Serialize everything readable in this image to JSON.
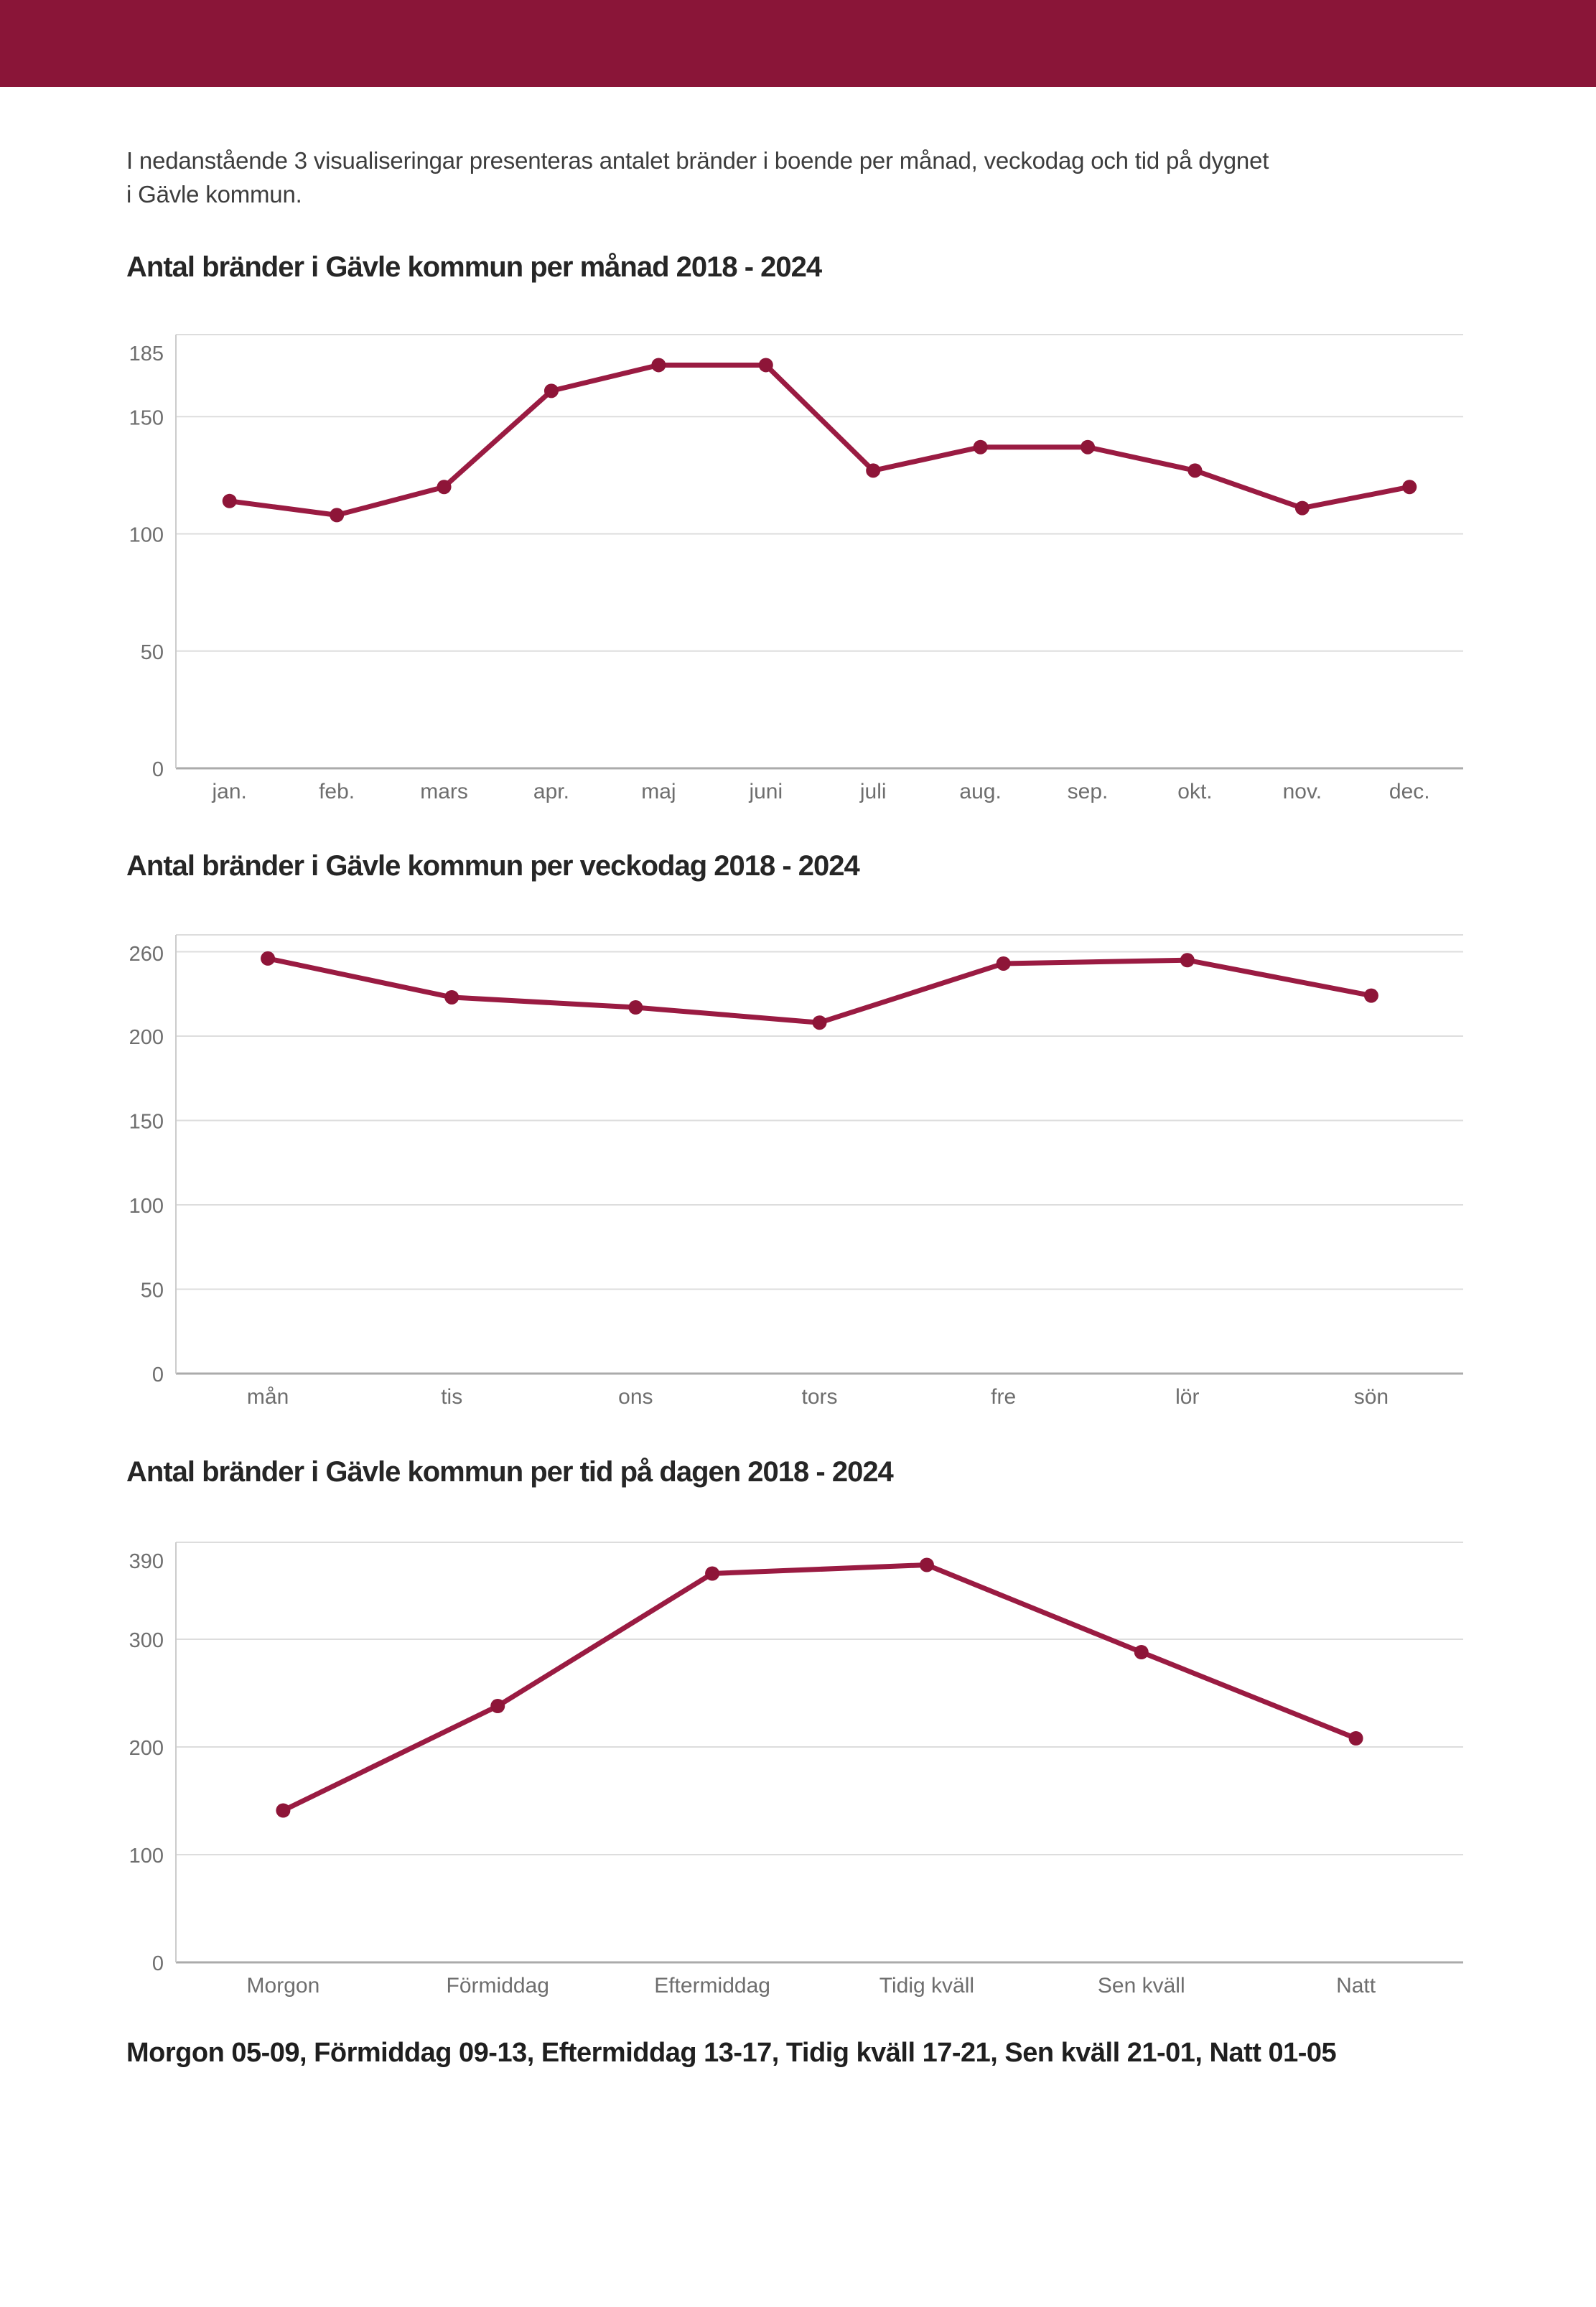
{
  "page": {
    "header_color": "#8A1538",
    "background_color": "#ffffff",
    "accent_color": "#9A1B42"
  },
  "intro": {
    "lines": [
      "I nedanstående 3 visualiseringar presenteras antalet bränder i boende per månad, veckodag och tid på dygnet",
      "i Gävle kommun."
    ]
  },
  "footnote": {
    "text": "Morgon 05-09, Förmiddag 09-13, Eftermiddag 13-17, Tidig kväll 17-21, Sen kväll 21-01, Natt 01-05"
  },
  "chart_data": [
    {
      "type": "line",
      "title": "Antal bränder i Gävle kommun per månad 2018 - 2024",
      "categories": [
        "jan.",
        "feb.",
        "mars",
        "apr.",
        "maj",
        "juni",
        "juli",
        "aug.",
        "sep.",
        "okt.",
        "nov.",
        "dec."
      ],
      "values": [
        114,
        108,
        120,
        161,
        172,
        172,
        127,
        137,
        137,
        127,
        111,
        120
      ],
      "xlabel": "",
      "ylabel": "",
      "ylim": [
        0,
        185
      ],
      "yticks": [
        0,
        50,
        100,
        150,
        185
      ],
      "unlabeled_gridlines": [],
      "grid": true,
      "legend": "none",
      "line_color": "#9A1B42",
      "point_color": "#8E1538"
    },
    {
      "type": "line",
      "title": "Antal bränder i Gävle kommun per veckodag 2018 - 2024",
      "categories": [
        "mån",
        "tis",
        "ons",
        "tors",
        "fre",
        "lör",
        "sön"
      ],
      "values": [
        246,
        223,
        217,
        208,
        243,
        245,
        224
      ],
      "xlabel": "",
      "ylabel": "",
      "ylim": [
        0,
        260
      ],
      "yticks": [
        0,
        50,
        100,
        150,
        200,
        260
      ],
      "unlabeled_gridlines": [
        250
      ],
      "grid": true,
      "legend": "none",
      "line_color": "#9A1B42",
      "point_color": "#8E1538"
    },
    {
      "type": "line",
      "title": "Antal bränder i Gävle kommun per tid på dagen 2018 - 2024",
      "categories": [
        "Morgon",
        "Förmiddag",
        "Eftermiddag",
        "Tidig kväll",
        "Sen kväll",
        "Natt"
      ],
      "values": [
        141,
        238,
        361,
        369,
        288,
        208
      ],
      "xlabel": "",
      "ylabel": "",
      "ylim": [
        0,
        390
      ],
      "yticks": [
        0,
        100,
        200,
        300,
        390
      ],
      "unlabeled_gridlines": [],
      "grid": true,
      "legend": "none",
      "line_color": "#9A1B42",
      "point_color": "#8E1538"
    }
  ]
}
